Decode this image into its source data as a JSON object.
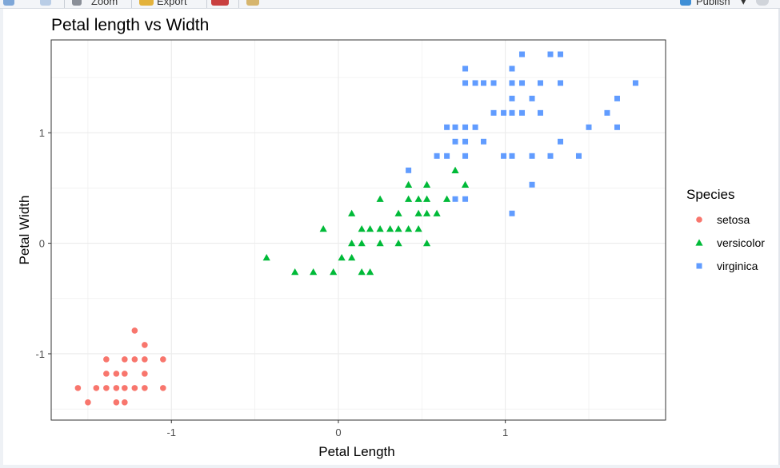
{
  "toolbar": {
    "zoom_label": "Zoom",
    "export_label": "Export",
    "publish_label": "Publish"
  },
  "colors": {
    "setosa": "#F8766D",
    "versicolor": "#00BA38",
    "virginica": "#619CFF",
    "grid": "#ebebeb",
    "panel_border": "#333333",
    "text": "#000000",
    "tick_text": "#4d4d4d"
  },
  "chart_data": {
    "type": "scatter",
    "title": "Petal length vs Width",
    "xlabel": "Petal Length",
    "ylabel": "Petal Width",
    "xlim": [
      -1.72,
      1.96
    ],
    "ylim": [
      -1.6,
      1.84
    ],
    "xticks": [
      -1,
      0,
      1
    ],
    "yticks": [
      -1,
      0,
      1
    ],
    "grid": true,
    "legend_title": "Species",
    "legend_position": "right",
    "series": [
      {
        "name": "setosa",
        "shape": "circle",
        "points": [
          [
            -1.22,
            -0.79
          ],
          [
            -1.16,
            -0.92
          ],
          [
            -1.39,
            -1.05
          ],
          [
            -1.28,
            -1.05
          ],
          [
            -1.22,
            -1.05
          ],
          [
            -1.16,
            -1.05
          ],
          [
            -1.05,
            -1.05
          ],
          [
            -1.39,
            -1.18
          ],
          [
            -1.33,
            -1.18
          ],
          [
            -1.28,
            -1.18
          ],
          [
            -1.16,
            -1.18
          ],
          [
            -1.56,
            -1.31
          ],
          [
            -1.45,
            -1.31
          ],
          [
            -1.39,
            -1.31
          ],
          [
            -1.33,
            -1.31
          ],
          [
            -1.28,
            -1.31
          ],
          [
            -1.22,
            -1.31
          ],
          [
            -1.16,
            -1.31
          ],
          [
            -1.05,
            -1.31
          ],
          [
            -1.5,
            -1.44
          ],
          [
            -1.33,
            -1.44
          ],
          [
            -1.28,
            -1.44
          ]
        ]
      },
      {
        "name": "versicolor",
        "shape": "triangle",
        "points": [
          [
            0.7,
            0.66
          ],
          [
            0.42,
            0.53
          ],
          [
            0.53,
            0.53
          ],
          [
            0.76,
            0.53
          ],
          [
            0.25,
            0.4
          ],
          [
            0.42,
            0.4
          ],
          [
            0.48,
            0.4
          ],
          [
            0.53,
            0.4
          ],
          [
            0.65,
            0.4
          ],
          [
            0.08,
            0.27
          ],
          [
            0.36,
            0.27
          ],
          [
            0.48,
            0.27
          ],
          [
            0.53,
            0.27
          ],
          [
            0.59,
            0.27
          ],
          [
            -0.09,
            0.13
          ],
          [
            0.14,
            0.13
          ],
          [
            0.19,
            0.13
          ],
          [
            0.25,
            0.13
          ],
          [
            0.31,
            0.13
          ],
          [
            0.36,
            0.13
          ],
          [
            0.42,
            0.13
          ],
          [
            0.48,
            0.13
          ],
          [
            0.08,
            0.0
          ],
          [
            0.14,
            0.0
          ],
          [
            0.25,
            0.0
          ],
          [
            0.36,
            0.0
          ],
          [
            0.53,
            0.0
          ],
          [
            -0.43,
            -0.13
          ],
          [
            0.02,
            -0.13
          ],
          [
            0.08,
            -0.13
          ],
          [
            -0.26,
            -0.26
          ],
          [
            -0.15,
            -0.26
          ],
          [
            -0.03,
            -0.26
          ],
          [
            0.14,
            -0.26
          ],
          [
            0.19,
            -0.26
          ]
        ]
      },
      {
        "name": "virginica",
        "shape": "square",
        "points": [
          [
            1.1,
            1.71
          ],
          [
            1.27,
            1.71
          ],
          [
            1.33,
            1.71
          ],
          [
            0.76,
            1.58
          ],
          [
            1.04,
            1.58
          ],
          [
            0.76,
            1.45
          ],
          [
            0.82,
            1.45
          ],
          [
            0.87,
            1.45
          ],
          [
            0.93,
            1.45
          ],
          [
            1.04,
            1.45
          ],
          [
            1.1,
            1.45
          ],
          [
            1.21,
            1.45
          ],
          [
            1.33,
            1.45
          ],
          [
            1.78,
            1.45
          ],
          [
            1.04,
            1.31
          ],
          [
            1.16,
            1.31
          ],
          [
            1.67,
            1.31
          ],
          [
            0.93,
            1.18
          ],
          [
            0.99,
            1.18
          ],
          [
            1.04,
            1.18
          ],
          [
            1.1,
            1.18
          ],
          [
            1.21,
            1.18
          ],
          [
            1.61,
            1.18
          ],
          [
            0.65,
            1.05
          ],
          [
            0.7,
            1.05
          ],
          [
            0.76,
            1.05
          ],
          [
            0.82,
            1.05
          ],
          [
            1.5,
            1.05
          ],
          [
            1.67,
            1.05
          ],
          [
            0.7,
            0.92
          ],
          [
            0.76,
            0.92
          ],
          [
            0.87,
            0.92
          ],
          [
            1.33,
            0.92
          ],
          [
            0.59,
            0.79
          ],
          [
            0.65,
            0.79
          ],
          [
            0.76,
            0.79
          ],
          [
            0.99,
            0.79
          ],
          [
            1.04,
            0.79
          ],
          [
            1.16,
            0.79
          ],
          [
            1.27,
            0.79
          ],
          [
            1.44,
            0.79
          ],
          [
            0.42,
            0.66
          ],
          [
            1.16,
            0.53
          ],
          [
            0.7,
            0.4
          ],
          [
            0.76,
            0.4
          ],
          [
            1.04,
            0.27
          ]
        ]
      }
    ]
  }
}
